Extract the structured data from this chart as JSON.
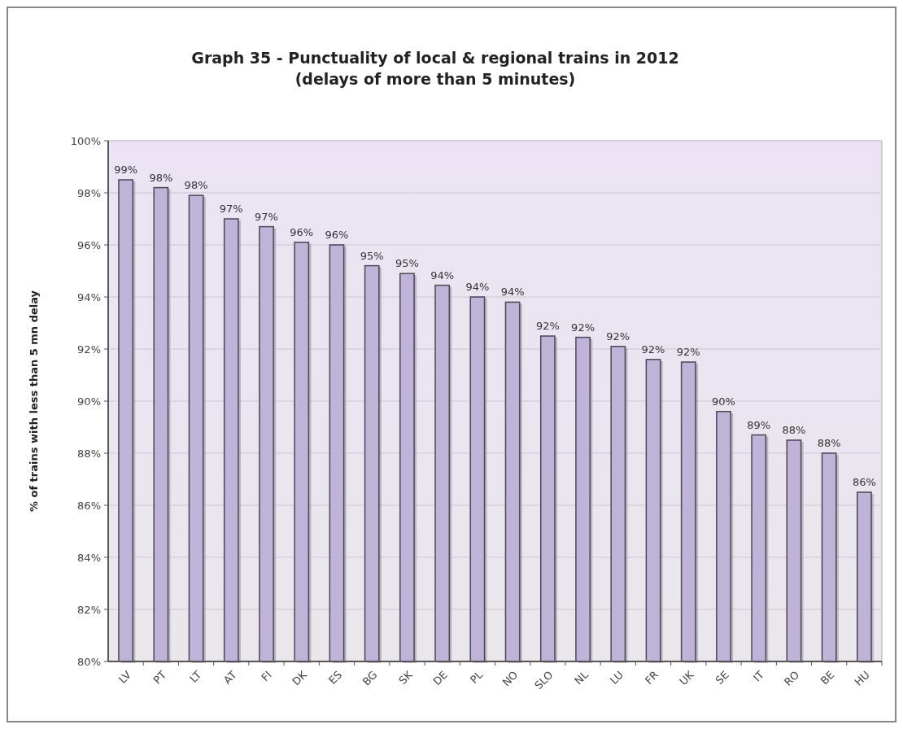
{
  "chart_data": {
    "type": "bar",
    "title": "Graph 35 - Punctuality of local & regional trains in 2012",
    "subtitle": "(delays of more than 5 minutes)",
    "ylabel": "% of trains with less than 5 mn delay",
    "categories": [
      "LV",
      "PT",
      "LT",
      "AT",
      "FI",
      "DK",
      "ES",
      "BG",
      "SK",
      "DE",
      "PL",
      "NO",
      "SLO",
      "NL",
      "LU",
      "FR",
      "UK",
      "SE",
      "IT",
      "RO",
      "BE",
      "HU"
    ],
    "values": [
      98.5,
      98.2,
      97.9,
      97.0,
      96.7,
      96.1,
      96.0,
      95.2,
      94.9,
      94.45,
      94.0,
      93.8,
      92.5,
      92.45,
      92.1,
      91.6,
      91.5,
      89.6,
      88.7,
      88.5,
      88.0,
      86.5
    ],
    "value_labels": [
      "99%",
      "98%",
      "98%",
      "97%",
      "97%",
      "96%",
      "96%",
      "95%",
      "95%",
      "94%",
      "94%",
      "94%",
      "92%",
      "92%",
      "92%",
      "92%",
      "92%",
      "90%",
      "89%",
      "88%",
      "88%",
      "86%"
    ],
    "color": "#c0b3d8",
    "ylim": [
      80,
      100
    ],
    "yticks": [
      {
        "value": 80,
        "label": "80%"
      },
      {
        "value": 82,
        "label": "82%"
      },
      {
        "value": 84,
        "label": "84%"
      },
      {
        "value": 86,
        "label": "86%"
      },
      {
        "value": 88,
        "label": "88%"
      },
      {
        "value": 90,
        "label": "90%"
      },
      {
        "value": 92,
        "label": "92%"
      },
      {
        "value": 94,
        "label": "94%"
      },
      {
        "value": 96,
        "label": "96%"
      },
      {
        "value": 98,
        "label": "98%"
      },
      {
        "value": 100,
        "label": "100%"
      }
    ],
    "grid": "y"
  }
}
